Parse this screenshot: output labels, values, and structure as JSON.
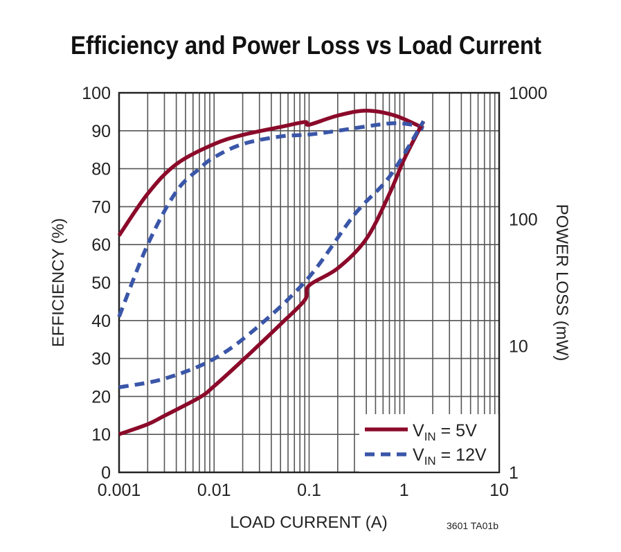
{
  "chart_data": {
    "type": "line",
    "title": "Efficiency and Power Loss vs Load Current",
    "xlabel": "LOAD CURRENT (A)",
    "ylabel": "EFFICIENCY (%)",
    "y2label": "POWER LOSS (mW)",
    "x_scale": "log",
    "xlim": [
      0.001,
      10
    ],
    "ylim": [
      0,
      100
    ],
    "y2_scale": "log",
    "y2lim": [
      1,
      1000
    ],
    "grid": true,
    "legend_position": "bottom-right",
    "x_ticks": [
      "0.001",
      "0.01",
      "0.1",
      "1",
      "10"
    ],
    "y_ticks": [
      "0",
      "10",
      "20",
      "30",
      "40",
      "50",
      "60",
      "70",
      "80",
      "90",
      "100"
    ],
    "y2_ticks": [
      "1",
      "10",
      "100",
      "1000"
    ],
    "note": "3601 TA01b",
    "legend": [
      {
        "label_main": "V",
        "label_sub": "IN",
        "label_rest": " = 5V",
        "color": "#8b0a2a",
        "style": "solid"
      },
      {
        "label_main": "V",
        "label_sub": "IN",
        "label_rest": " = 12V",
        "color": "#3a56a8",
        "style": "dashed"
      }
    ],
    "series": [
      {
        "name": "VIN = 5V",
        "axis": "efficiency",
        "color": "#8b0a2a",
        "style": "solid",
        "x": [
          0.001,
          0.002,
          0.004,
          0.01,
          0.02,
          0.05,
          0.09,
          0.1,
          0.2,
          0.4,
          0.8,
          1.6
        ],
        "y": [
          62.4,
          73.4,
          81.2,
          86.5,
          88.9,
          91,
          92.3,
          91.6,
          94,
          95.3,
          94,
          90.7
        ]
      },
      {
        "name": "VIN = 12V",
        "axis": "efficiency",
        "color": "#3a56a8",
        "style": "dashed",
        "x": [
          0.001,
          0.002,
          0.004,
          0.007,
          0.01,
          0.02,
          0.05,
          0.1,
          0.2,
          0.5,
          0.8,
          1.2,
          1.6
        ],
        "y": [
          41,
          60,
          74,
          80,
          83,
          86.5,
          88.5,
          89,
          90,
          91.5,
          92,
          91.6,
          90.5
        ]
      },
      {
        "name": "VIN = 5V",
        "axis": "power_loss",
        "color": "#8b0a2a",
        "style": "solid",
        "x": [
          0.001,
          0.002,
          0.003,
          0.007,
          0.01,
          0.02,
          0.05,
          0.09,
          0.1,
          0.2,
          0.4,
          0.7,
          1.0,
          1.6
        ],
        "y": [
          2.0,
          2.4,
          2.8,
          3.9,
          4.8,
          7.7,
          14.8,
          23,
          30,
          41,
          70,
          159,
          298,
          596
        ]
      },
      {
        "name": "VIN = 12V",
        "axis": "power_loss",
        "color": "#3a56a8",
        "style": "dashed",
        "x": [
          0.001,
          0.003,
          0.01,
          0.03,
          0.1,
          0.3,
          0.7,
          1.6
        ],
        "y": [
          4.7,
          5.5,
          7.9,
          14.5,
          35,
          109,
          217,
          596
        ]
      }
    ]
  }
}
